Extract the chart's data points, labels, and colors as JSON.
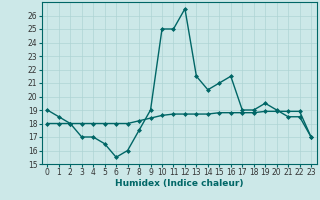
{
  "xlabel": "Humidex (Indice chaleur)",
  "background_color": "#cce8e8",
  "line_color": "#006666",
  "x_values": [
    0,
    1,
    2,
    3,
    4,
    5,
    6,
    7,
    8,
    9,
    10,
    11,
    12,
    13,
    14,
    15,
    16,
    17,
    18,
    19,
    20,
    21,
    22,
    23
  ],
  "y_line1": [
    19,
    18.5,
    18,
    17,
    17,
    16.5,
    15.5,
    16,
    17.5,
    19,
    25,
    25,
    26.5,
    21.5,
    20.5,
    21,
    21.5,
    19,
    19,
    19.5,
    19,
    18.5,
    18.5,
    17
  ],
  "y_line2": [
    18,
    18,
    18,
    18,
    18,
    18,
    18,
    18,
    18.2,
    18.4,
    18.6,
    18.7,
    18.7,
    18.7,
    18.7,
    18.8,
    18.8,
    18.8,
    18.8,
    18.9,
    18.9,
    18.9,
    18.9,
    17
  ],
  "ylim": [
    15,
    27
  ],
  "xlim": [
    -0.5,
    23.5
  ],
  "yticks": [
    15,
    16,
    17,
    18,
    19,
    20,
    21,
    22,
    23,
    24,
    25,
    26
  ],
  "xticks": [
    0,
    1,
    2,
    3,
    4,
    5,
    6,
    7,
    8,
    9,
    10,
    11,
    12,
    13,
    14,
    15,
    16,
    17,
    18,
    19,
    20,
    21,
    22,
    23
  ],
  "grid_color": "#aed4d4",
  "marker": "D",
  "marker_size": 2.0,
  "line_width": 1.0,
  "tick_fontsize": 5.5,
  "xlabel_fontsize": 6.5
}
